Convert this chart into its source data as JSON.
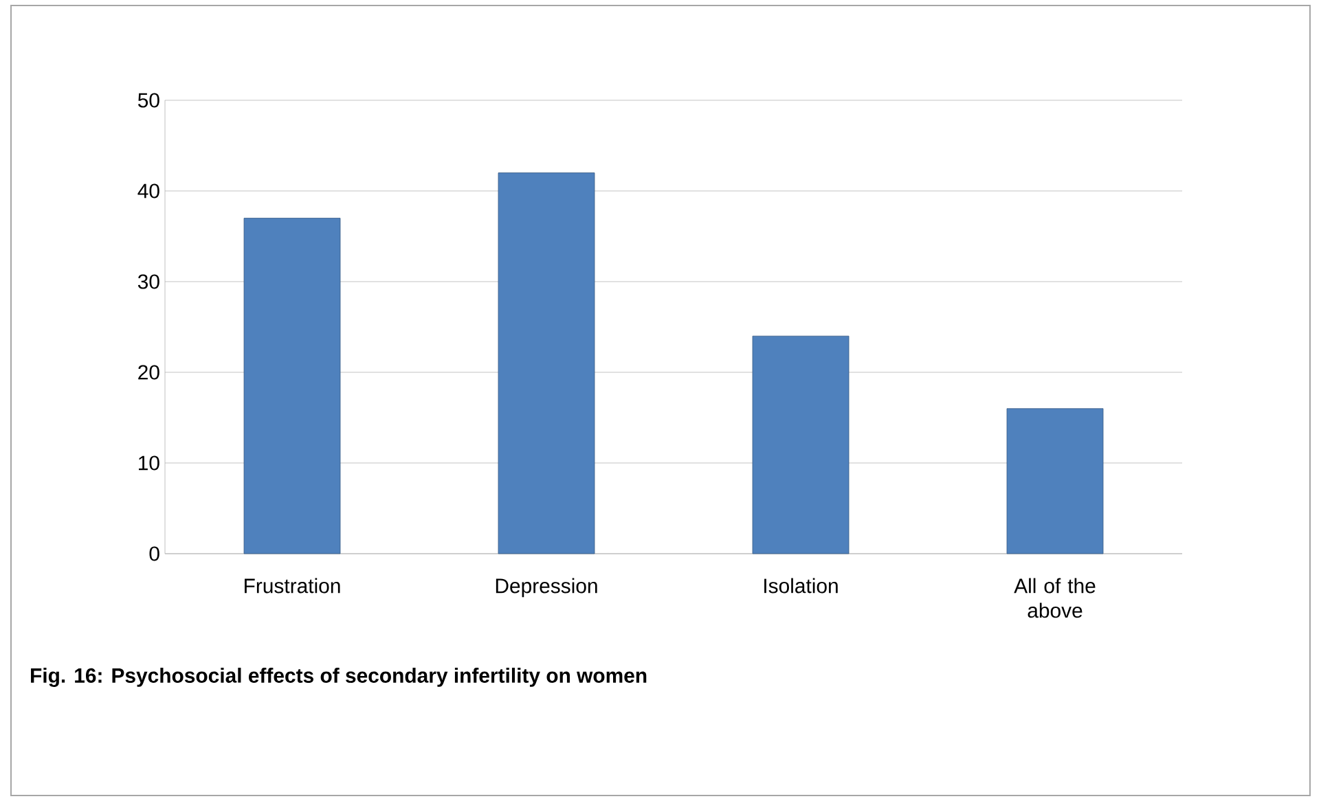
{
  "chart_data": {
    "type": "bar",
    "title": "Fig. 16: Psychosocial effects of secondary infertility on women",
    "categories": [
      "Frustration",
      "Depression",
      "Isolation",
      "All of the above"
    ],
    "values": [
      37,
      42,
      24,
      16
    ],
    "color": "#4f81bd",
    "ylim": [
      0,
      50
    ],
    "yticks": [
      0,
      10,
      20,
      30,
      40,
      50
    ],
    "grid": "y"
  }
}
